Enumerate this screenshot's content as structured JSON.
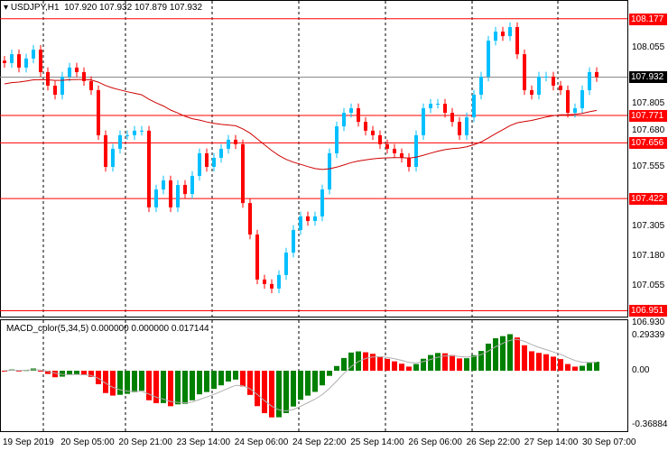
{
  "header": {
    "symbol": "USDJPY,H1",
    "ohlc": "107.920 107.932 107.879 107.932"
  },
  "price_axis": {
    "ticks": [
      "108.055",
      "107.805",
      "107.680",
      "107.555",
      "107.305",
      "107.180",
      "107.055",
      "106.930"
    ],
    "levels": [
      {
        "label": "108.177",
        "value": 108.177
      },
      {
        "label": "107.771",
        "value": 107.771
      },
      {
        "label": "107.656",
        "value": 107.656
      },
      {
        "label": "107.422",
        "value": 107.422
      },
      {
        "label": "106.951",
        "value": 106.951
      }
    ],
    "current": {
      "label": "107.932",
      "value": 107.932
    }
  },
  "macd": {
    "title": "MACD_color(5,34,5) 0.000000 0.000000 0.017144",
    "max_label": "0.29339",
    "zero_label": "0.00",
    "min_label": "-0.368847",
    "max": 0.29339,
    "min": -0.368847
  },
  "dates": [
    "19 Sep 2019",
    "20 Sep 05:00",
    "20 Sep 21:00",
    "23 Sep 14:00",
    "24 Sep 06:00",
    "24 Sep 22:00",
    "25 Sep 14:00",
    "26 Sep 06:00",
    "26 Sep 22:00",
    "27 Sep 14:00",
    "30 Sep 07:00"
  ],
  "colors": {
    "bull": "#00bfff",
    "bear": "#ff0000",
    "level": "#ff0000",
    "macd_up": "#008000",
    "macd_down": "#ff0000",
    "ma": "#d00000"
  },
  "chart_data": {
    "type": "candlestick",
    "symbol": "USDJPY",
    "timeframe": "H1",
    "ylim": [
      106.93,
      108.23
    ],
    "closes": [
      107.991,
      108.028,
      107.972,
      108.01,
      108.047,
      107.953,
      107.896,
      107.858,
      107.934,
      107.972,
      107.953,
      107.915,
      107.877,
      107.688,
      107.555,
      107.631,
      107.688,
      107.688,
      107.707,
      107.707,
      107.385,
      107.46,
      107.498,
      107.385,
      107.479,
      107.441,
      107.517,
      107.612,
      107.555,
      107.593,
      107.631,
      107.669,
      107.65,
      107.403,
      107.271,
      107.082,
      107.063,
      107.044,
      107.101,
      107.195,
      107.29,
      107.347,
      107.328,
      107.347,
      107.46,
      107.612,
      107.725,
      107.782,
      107.801,
      107.744,
      107.707,
      107.688,
      107.65,
      107.631,
      107.612,
      107.593,
      107.555,
      107.688,
      107.801,
      107.82,
      107.82,
      107.782,
      107.744,
      107.688,
      107.763,
      107.858,
      107.934,
      108.085,
      108.123,
      108.104,
      108.142,
      108.028,
      107.877,
      107.858,
      107.934,
      107.934,
      107.896,
      107.877,
      107.782,
      107.801,
      107.877,
      107.953,
      107.932
    ]
  }
}
